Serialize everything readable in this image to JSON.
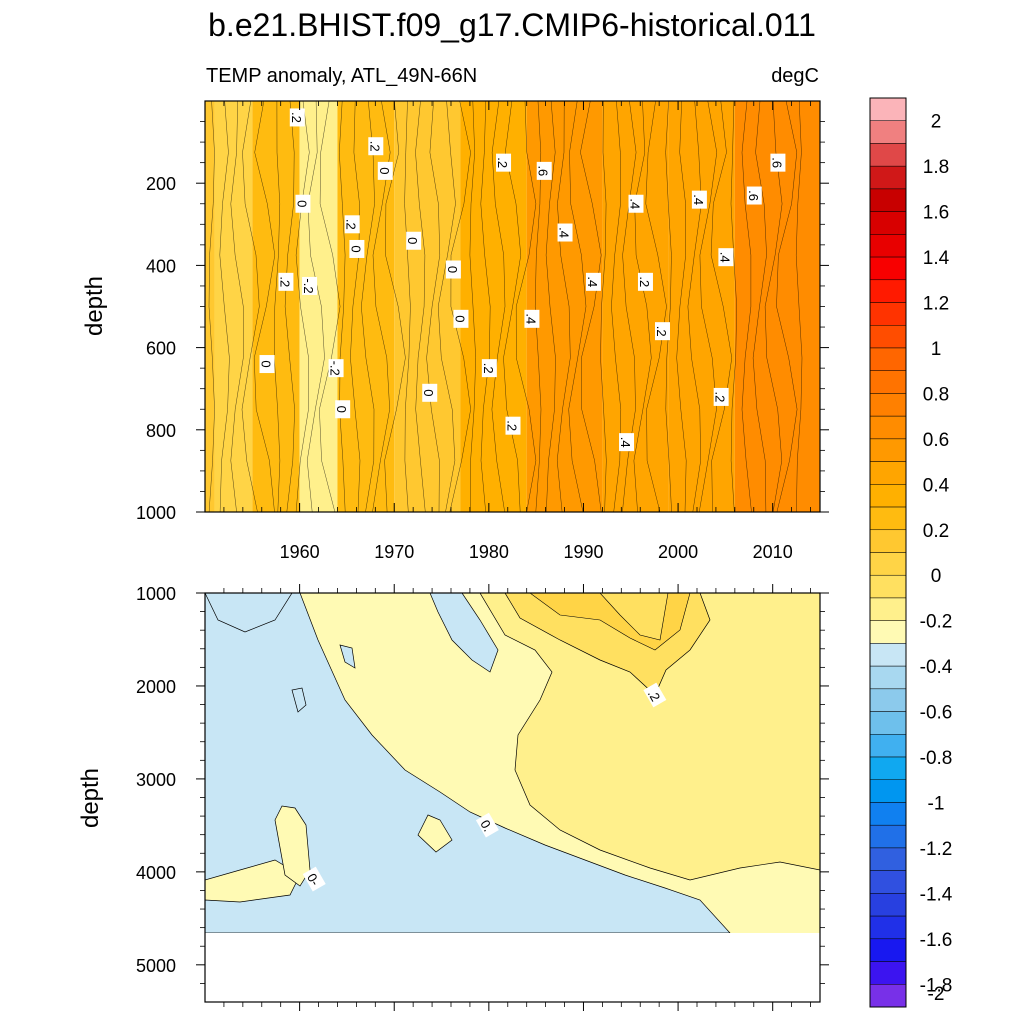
{
  "figure": {
    "title": "b.e21.BHIST.f09_g17.CMIP6-historical.011",
    "variable_label": "TEMP anomaly, ATL_49N-66N",
    "units_label": "degC"
  },
  "chart_data": [
    {
      "type": "heatmap",
      "panel": "upper",
      "xlabel": "",
      "ylabel": "depth",
      "xlim": [
        1950,
        2015
      ],
      "ylim": [
        0,
        1000
      ],
      "y_inverted": true,
      "xticks": [
        {
          "value": 1960,
          "label": "1960"
        },
        {
          "value": 1970,
          "label": "1970"
        },
        {
          "value": 1980,
          "label": "1980"
        },
        {
          "value": 1990,
          "label": "1990"
        },
        {
          "value": 2000,
          "label": "2000"
        },
        {
          "value": 2010,
          "label": "2010"
        }
      ],
      "yticks": [
        {
          "value": 200,
          "label": "200"
        },
        {
          "value": 400,
          "label": "400"
        },
        {
          "value": 600,
          "label": "600"
        },
        {
          "value": 800,
          "label": "800"
        },
        {
          "value": 1000,
          "label": "1000"
        }
      ],
      "time_series_bands": [
        {
          "x0": 1950,
          "x1": 1951,
          "value": 0.05
        },
        {
          "x0": 1951,
          "x1": 1955,
          "value": -0.08
        },
        {
          "x0": 1955,
          "x1": 1960,
          "value": 0.12
        },
        {
          "x0": 1960,
          "x1": 1964,
          "value": -0.25
        },
        {
          "x0": 1964,
          "x1": 1970,
          "value": 0.1
        },
        {
          "x0": 1970,
          "x1": 1977,
          "value": 0.04
        },
        {
          "x0": 1977,
          "x1": 1984,
          "value": 0.2
        },
        {
          "x0": 1984,
          "x1": 1992,
          "value": 0.45
        },
        {
          "x0": 1992,
          "x1": 1999,
          "value": 0.35
        },
        {
          "x0": 1999,
          "x1": 2006,
          "value": 0.4
        },
        {
          "x0": 2006,
          "x1": 2015,
          "value": 0.55
        }
      ],
      "contour_labels": [
        {
          "x": 1959.7,
          "y": 40,
          "text": ".2"
        },
        {
          "x": 1958.5,
          "y": 440,
          "text": ".2"
        },
        {
          "x": 1956.5,
          "y": 640,
          "text": "0"
        },
        {
          "x": 1960.3,
          "y": 250,
          "text": "0"
        },
        {
          "x": 1961,
          "y": 450,
          "text": "-.2"
        },
        {
          "x": 1963.8,
          "y": 650,
          "text": "-.2"
        },
        {
          "x": 1964.5,
          "y": 750,
          "text": "0"
        },
        {
          "x": 1965.5,
          "y": 300,
          "text": ".2"
        },
        {
          "x": 1966,
          "y": 360,
          "text": "0"
        },
        {
          "x": 1968,
          "y": 110,
          "text": ".2"
        },
        {
          "x": 1969,
          "y": 170,
          "text": "0"
        },
        {
          "x": 1972,
          "y": 340,
          "text": "0"
        },
        {
          "x": 1973.7,
          "y": 710,
          "text": "0"
        },
        {
          "x": 1976.2,
          "y": 410,
          "text": "0"
        },
        {
          "x": 1977,
          "y": 530,
          "text": "0"
        },
        {
          "x": 1980,
          "y": 650,
          "text": ".2"
        },
        {
          "x": 1981.5,
          "y": 150,
          "text": ".2"
        },
        {
          "x": 1982.5,
          "y": 790,
          "text": ".2"
        },
        {
          "x": 1984.5,
          "y": 530,
          "text": ".4"
        },
        {
          "x": 1985.8,
          "y": 170,
          "text": ".6"
        },
        {
          "x": 1988,
          "y": 320,
          "text": ".4"
        },
        {
          "x": 1991,
          "y": 440,
          "text": ".4"
        },
        {
          "x": 1994.5,
          "y": 830,
          "text": ".4"
        },
        {
          "x": 1995.5,
          "y": 250,
          "text": ".4"
        },
        {
          "x": 1996.5,
          "y": 440,
          "text": ".2"
        },
        {
          "x": 1998.3,
          "y": 560,
          "text": ".2"
        },
        {
          "x": 2002.2,
          "y": 240,
          "text": ".4"
        },
        {
          "x": 2004.5,
          "y": 720,
          "text": ".2"
        },
        {
          "x": 2005,
          "y": 380,
          "text": ".4"
        },
        {
          "x": 2008,
          "y": 230,
          "text": ".6"
        },
        {
          "x": 2010.5,
          "y": 150,
          "text": ".6"
        }
      ]
    },
    {
      "type": "heatmap",
      "panel": "lower",
      "xlabel": "",
      "ylabel": "depth",
      "xlim": [
        1950,
        2015
      ],
      "ylim": [
        1000,
        5400
      ],
      "y_inverted": true,
      "missing_below_depth": 4600,
      "yticks": [
        {
          "value": 1000,
          "label": "1000"
        },
        {
          "value": 2000,
          "label": "2000"
        },
        {
          "value": 3000,
          "label": "3000"
        },
        {
          "value": 4000,
          "label": "4000"
        },
        {
          "value": 5000,
          "label": "5000"
        }
      ],
      "contour_labels": [
        {
          "x": 1997.5,
          "y": 2100,
          "text": ".2"
        },
        {
          "x": 1979.8,
          "y": 3500,
          "text": "0."
        },
        {
          "x": 1961.5,
          "y": 4080,
          "text": "0-"
        }
      ]
    }
  ],
  "colorbar": {
    "min": -2,
    "max": 2,
    "step": 0.1,
    "labels": [
      "2",
      "1.8",
      "1.6",
      "1.4",
      "1.2",
      "1",
      "0.8",
      "0.6",
      "0.4",
      "0.2",
      "0",
      "-0.2",
      "-0.4",
      "-0.6",
      "-0.8",
      "-1",
      "-1.2",
      "-1.4",
      "-1.6",
      "-1.8",
      "-2"
    ],
    "colors": [
      "#fbb4b9",
      "#f08080",
      "#e04848",
      "#d01818",
      "#c80000",
      "#d80000",
      "#e80000",
      "#f80000",
      "#ff1a00",
      "#ff3300",
      "#ff4d00",
      "#ff6600",
      "#ff7300",
      "#ff8000",
      "#ff8c00",
      "#ff9900",
      "#ffa500",
      "#ffb000",
      "#ffbb10",
      "#ffc830",
      "#ffd446",
      "#ffe060",
      "#fff08c",
      "#fffab4",
      "#c8e6f5",
      "#a8d8f0",
      "#8ccaec",
      "#6ec0ec",
      "#40b0f0",
      "#10a8f0",
      "#0096f0",
      "#1080f0",
      "#2070e8",
      "#3060e0",
      "#3050e0",
      "#2840e0",
      "#2030e8",
      "#1818f0",
      "#3c14f0",
      "#7830e8"
    ]
  }
}
